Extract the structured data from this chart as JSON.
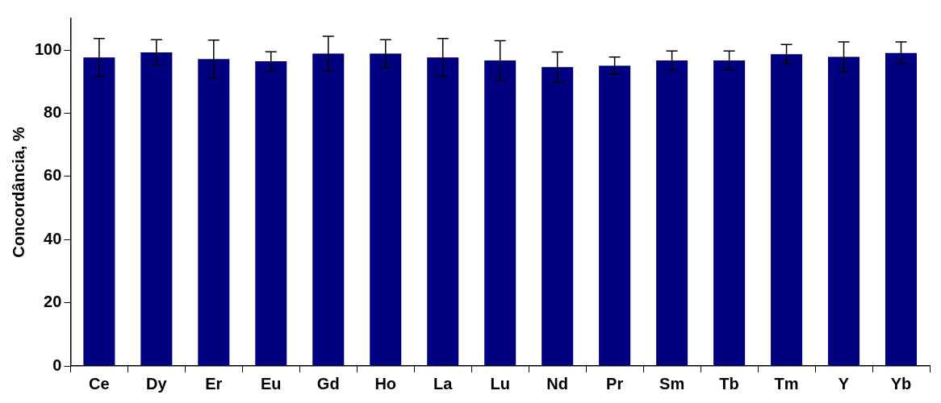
{
  "chart_data": {
    "type": "bar",
    "ylabel": "Concordância, %",
    "categories": [
      "Ce",
      "Dy",
      "Er",
      "Eu",
      "Gd",
      "Ho",
      "La",
      "Lu",
      "Nd",
      "Pr",
      "Sm",
      "Tb",
      "Tm",
      "Y",
      "Yb"
    ],
    "series": [
      {
        "color": "#000080",
        "values": [
          97.7,
          99.3,
          97.2,
          96.5,
          98.9,
          98.9,
          97.7,
          96.7,
          94.6,
          95.1,
          96.7,
          96.7,
          98.7,
          97.9,
          99.1
        ],
        "errors": [
          6,
          4,
          6,
          3,
          5.5,
          4.4,
          6,
          6.3,
          4.8,
          2.7,
          3,
          3,
          3.1,
          4.7,
          3.5
        ]
      }
    ],
    "ylim": [
      0,
      110
    ],
    "yticks": [
      0,
      20,
      40,
      60,
      80,
      100
    ],
    "grid": false,
    "legend": false
  }
}
